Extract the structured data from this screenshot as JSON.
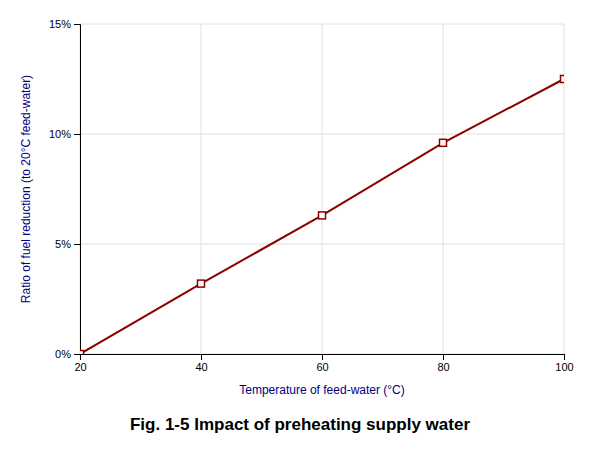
{
  "chart_data": {
    "type": "line",
    "title": "Fig. 1-5 Impact of preheating supply water",
    "xlabel": "Temperature of feed-water (°C)",
    "ylabel": "Ratio of fuel reduction (to 20°C feed-water)",
    "x": [
      20,
      40,
      60,
      80,
      100
    ],
    "values": [
      0.0,
      0.032,
      0.063,
      0.096,
      0.125
    ],
    "color": "#8B0000",
    "marker": "square",
    "xlim": [
      20,
      100
    ],
    "xticks": [
      20,
      40,
      60,
      80,
      100
    ],
    "ylim": [
      0.0,
      0.15
    ],
    "yticks": [
      {
        "value": 0.0,
        "label": "0%"
      },
      {
        "value": 0.05,
        "label": "5%"
      },
      {
        "value": 0.1,
        "label": "10%"
      },
      {
        "value": 0.15,
        "label": "15%"
      }
    ],
    "grid": true
  }
}
